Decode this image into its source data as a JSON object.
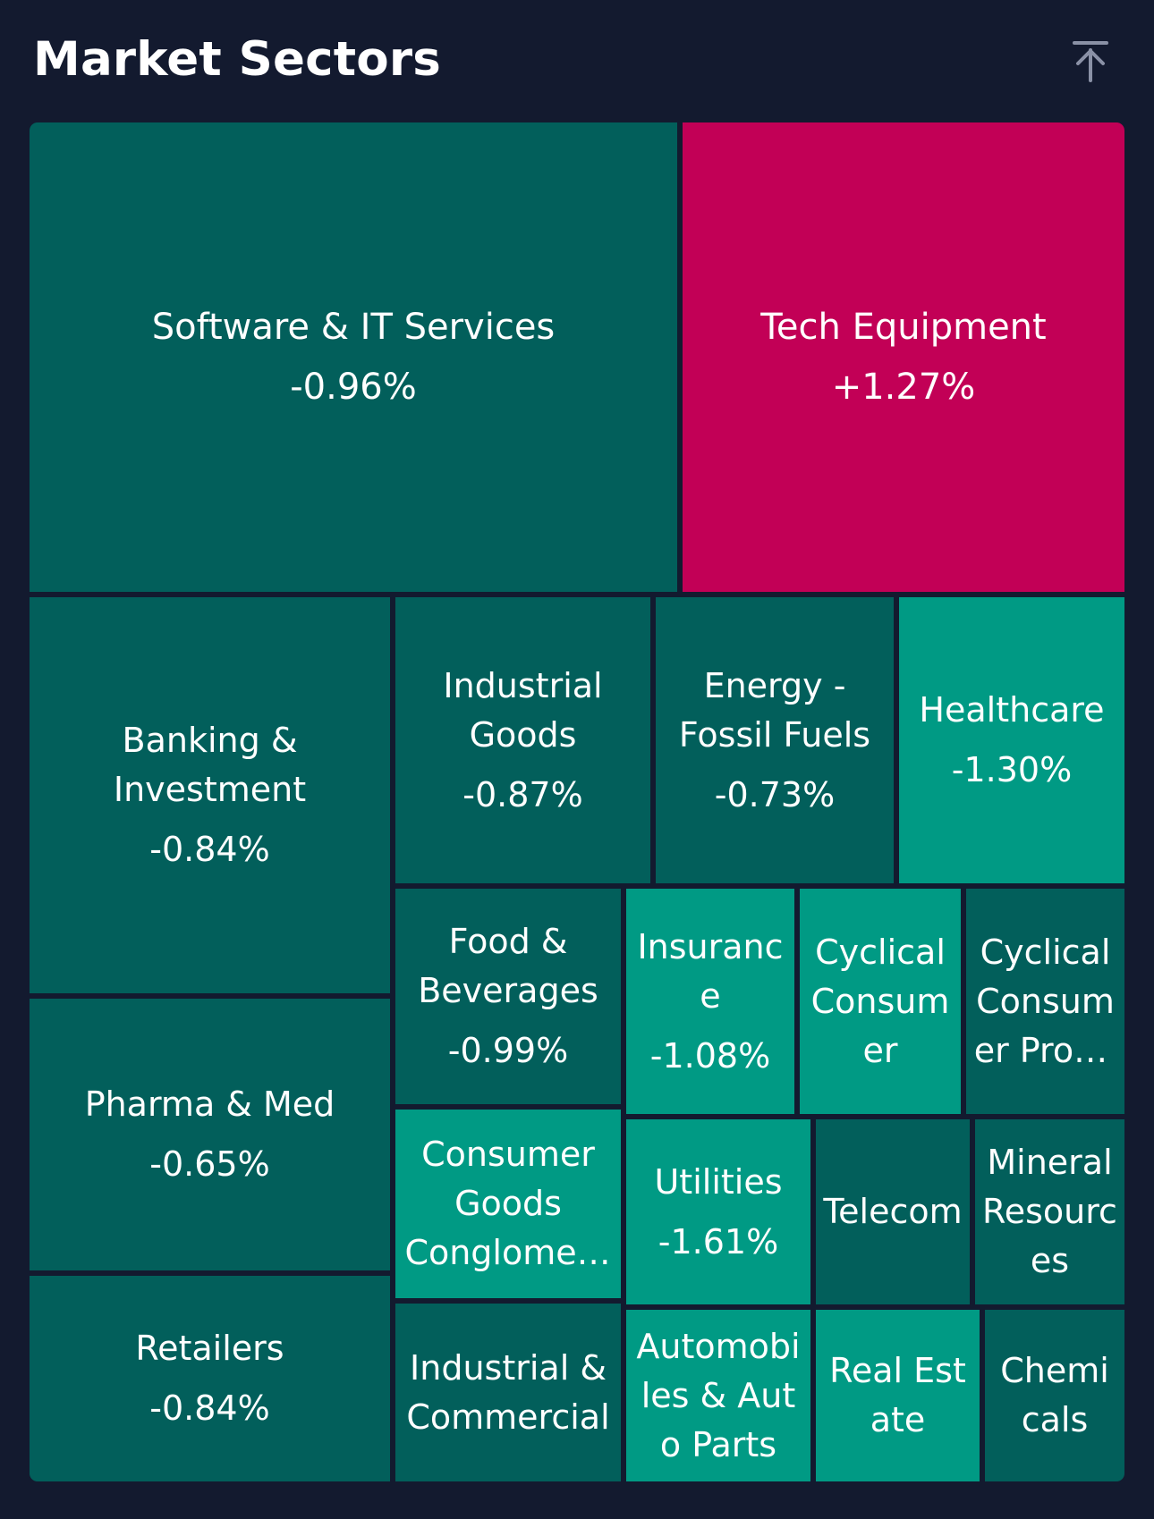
{
  "header": {
    "title": "Market Sectors",
    "scroll_top_icon": "arrow-up-to-line-icon"
  },
  "colors": {
    "background": "#131a2f",
    "dark_teal": "#025f5b",
    "bright_teal": "#009a84",
    "magenta": "#c20056"
  },
  "tiles": [
    {
      "name": "Software & IT Services",
      "change": "-0.96%",
      "color": "#025f5b"
    },
    {
      "name": "Tech Equipment",
      "change": "+1.27%",
      "color": "#c20056"
    },
    {
      "name": "Banking & Investment",
      "change": "-0.84%",
      "color": "#025f5b"
    },
    {
      "name": "Industrial Goods",
      "change": "-0.87%",
      "color": "#025f5b"
    },
    {
      "name": "Energy - Fossil Fuels",
      "change": "-0.73%",
      "color": "#025f5b"
    },
    {
      "name": "Healthcare",
      "change": "-1.30%",
      "color": "#009a84"
    },
    {
      "name": "Food & Beverages",
      "change": "-0.99%",
      "color": "#025f5b"
    },
    {
      "name": "Insurance",
      "change": "-1.08%",
      "color": "#009a84"
    },
    {
      "name": "Cyclical Consumer",
      "change": "",
      "color": "#009a84"
    },
    {
      "name": "Cyclical Consumer Products",
      "change": "",
      "color": "#025f5b"
    },
    {
      "name": "Pharma & Med",
      "change": "-0.65%",
      "color": "#025f5b"
    },
    {
      "name": "Consumer Goods Conglomerates",
      "change": "",
      "color": "#009a84"
    },
    {
      "name": "Utilities",
      "change": "-1.61%",
      "color": "#009a84"
    },
    {
      "name": "Telecom",
      "change": "",
      "color": "#025f5b"
    },
    {
      "name": "Mineral Resources",
      "change": "",
      "color": "#025f5b"
    },
    {
      "name": "Retailers",
      "change": "-0.84%",
      "color": "#025f5b"
    },
    {
      "name": "Industrial & Commercial",
      "change": "",
      "color": "#025f5b"
    },
    {
      "name": "Automobiles & Auto Parts",
      "change": "",
      "color": "#009a84"
    },
    {
      "name": "Real Estate",
      "change": "",
      "color": "#009a84"
    },
    {
      "name": "Chemicals",
      "change": "",
      "color": "#025f5b"
    }
  ]
}
